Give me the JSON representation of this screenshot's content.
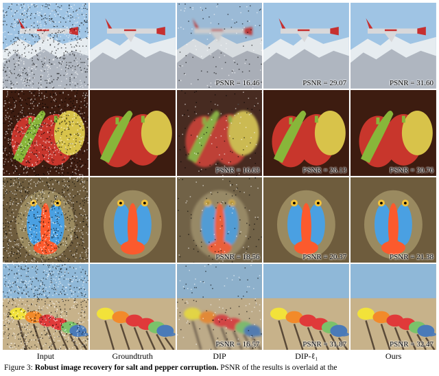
{
  "columns": [
    "Input",
    "Groundtruth",
    "DIP",
    "DIP-ℓ₁",
    "Ours"
  ],
  "rows": [
    {
      "subject": "airplane",
      "psnr": [
        null,
        null,
        "PSNR = 16.46",
        "PSNR = 29.07",
        "PSNR = 31.60"
      ],
      "bg": [
        "#a8b6c4",
        "#c7d9e8",
        "#b9c5d0",
        "#bcd0df",
        "#bcd0df"
      ],
      "noise": [
        0.55,
        0,
        0.1,
        0,
        0
      ],
      "shapes": "plane"
    },
    {
      "subject": "peppers",
      "psnr": [
        null,
        null,
        "PSNR = 16.63",
        "PSNR = 26.13",
        "PSNR = 30.76"
      ],
      "bg": [
        "#6b3a2a",
        "#2f1a10",
        "#4a2d1e",
        "#2f1a10",
        "#2f1a10"
      ],
      "noise": [
        0.55,
        0,
        0.1,
        0,
        0
      ],
      "shapes": "peppers"
    },
    {
      "subject": "mandrill",
      "psnr": [
        null,
        null,
        "PSNR = 18.56",
        "PSNR = 20.37",
        "PSNR = 21.38"
      ],
      "bg": [
        "#6d5a3e",
        "#7a6a48",
        "#6f5e44",
        "#76664a",
        "#76664a"
      ],
      "noise": [
        0.55,
        0,
        0.1,
        0,
        0
      ],
      "shapes": "mandrill"
    },
    {
      "subject": "caps",
      "psnr": [
        null,
        null,
        "PSNR = 16.57",
        "PSNR = 31.87",
        "PSNR = 32.47"
      ],
      "bg": [
        "#b9a87e",
        "#bda984",
        "#b6a47e",
        "#bba882",
        "#bba882"
      ],
      "noise": [
        0.55,
        0,
        0.1,
        0,
        0
      ],
      "shapes": "caps"
    }
  ],
  "caption": {
    "prefix": "Figure 3:",
    "title": "Robust image recovery for salt and pepper corruption.",
    "rest": "PSNR of the results is overlaid at the"
  },
  "palettes": {
    "plane": {
      "body": "#d8d8da",
      "tail": "#c62f2f",
      "nose": "#c62f2f",
      "snow": "#e6ecf0",
      "rock": "#8a93a0",
      "sky": "#9fc4e4"
    },
    "peppers": {
      "red": "#c8362c",
      "green": "#88b63a",
      "yellow": "#d8c34a",
      "dark": "#3d1c10"
    },
    "mandrill": {
      "face": "#fc5a2d",
      "nose": "#4aa0e2",
      "fur": "#6e5c3d",
      "furLight": "#b8a878",
      "eye": "#f2c23a"
    },
    "caps": {
      "wall": "#c7b28a",
      "sky": "#8fb8d8",
      "yellow": "#f2e23a",
      "orange": "#f28a2a",
      "red": "#e03a3a",
      "green": "#7bc26a",
      "blue": "#4a7ab8",
      "stick": "#5a4a38"
    }
  }
}
